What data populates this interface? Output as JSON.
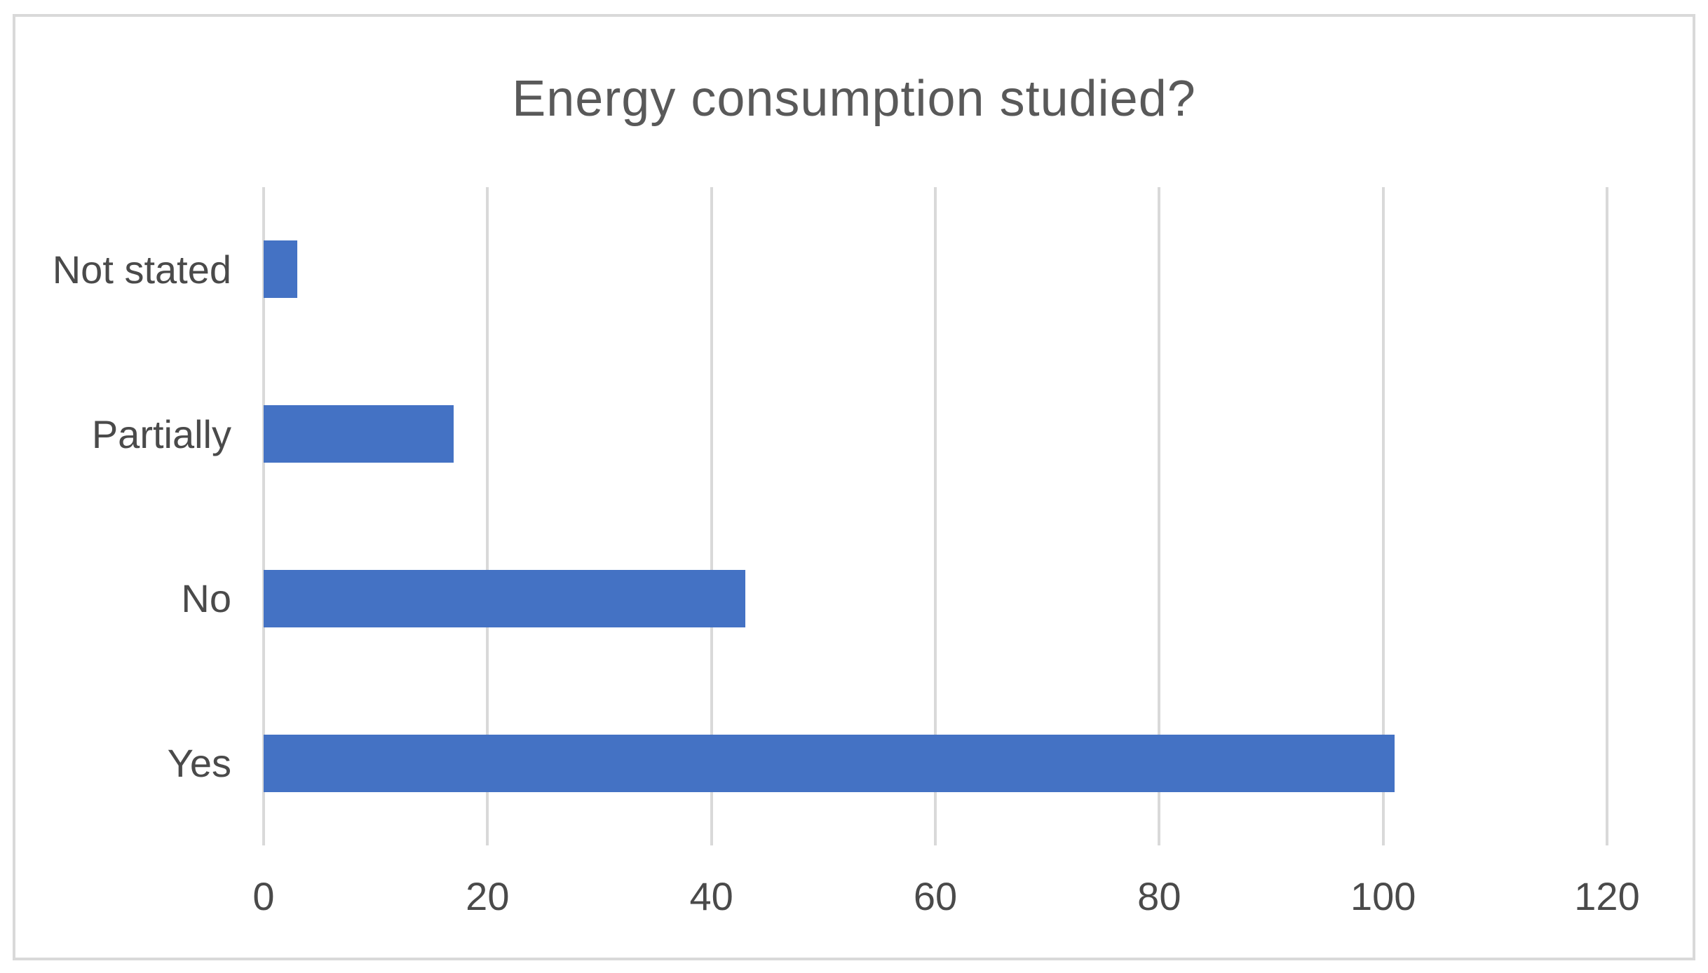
{
  "chart_data": {
    "type": "bar",
    "orientation": "horizontal",
    "title": "Energy consumption studied?",
    "categories": [
      "Not stated",
      "Partially",
      "No",
      "Yes"
    ],
    "values": [
      3,
      17,
      43,
      101
    ],
    "xlabel": "",
    "ylabel": "",
    "xlim": [
      0,
      120
    ],
    "x_ticks": [
      0,
      20,
      40,
      60,
      80,
      100,
      120
    ],
    "grid": true,
    "legend": false,
    "colors": {
      "bar": "#4472C4",
      "gridline": "#D9D9D9",
      "frame_border": "#D9D9D9",
      "title_text": "#595959",
      "axis_text": "#4A4A4A",
      "background": "#FFFFFF"
    }
  }
}
